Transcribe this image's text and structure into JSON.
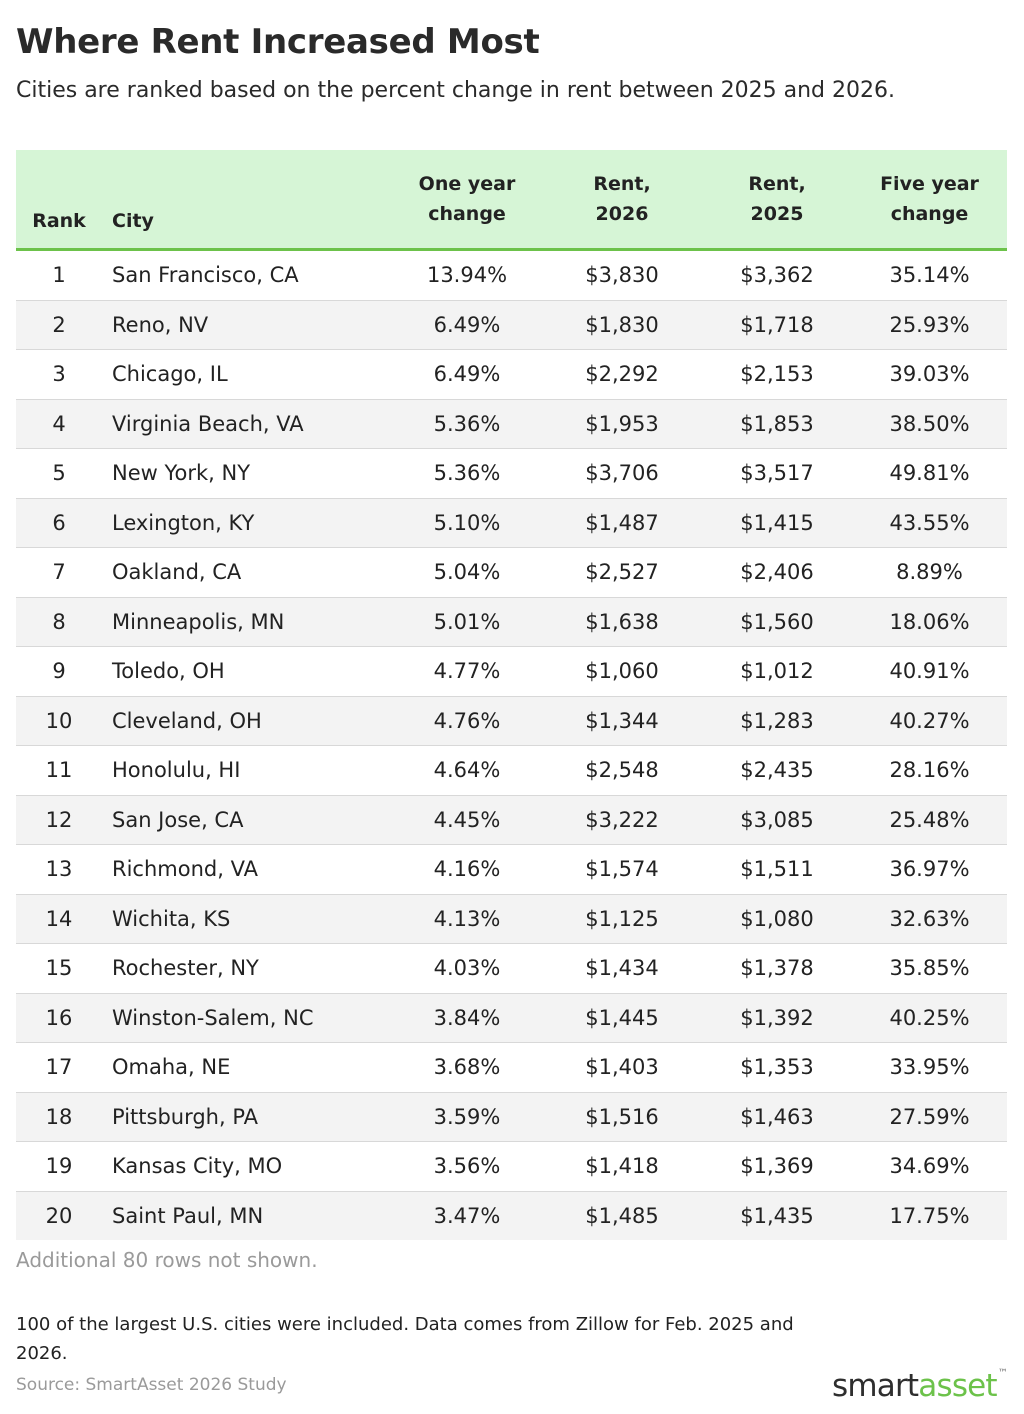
{
  "title": "Where Rent Increased Most",
  "subtitle": "Cities are ranked based on the percent change in rent between 2025 and 2026.",
  "chart_data": {
    "type": "table",
    "columns": [
      {
        "key": "rank",
        "label": "Rank"
      },
      {
        "key": "city",
        "label": "City"
      },
      {
        "key": "one_year",
        "label": "One year change"
      },
      {
        "key": "rent_2026",
        "label": "Rent, 2026"
      },
      {
        "key": "rent_2025",
        "label": "Rent, 2025"
      },
      {
        "key": "five_year",
        "label": "Five year change"
      }
    ],
    "rows": [
      {
        "rank": "1",
        "city": "San Francisco, CA",
        "one_year": "13.94%",
        "rent_2026": "$3,830",
        "rent_2025": "$3,362",
        "five_year": "35.14%"
      },
      {
        "rank": "2",
        "city": "Reno, NV",
        "one_year": "6.49%",
        "rent_2026": "$1,830",
        "rent_2025": "$1,718",
        "five_year": "25.93%"
      },
      {
        "rank": "3",
        "city": "Chicago, IL",
        "one_year": "6.49%",
        "rent_2026": "$2,292",
        "rent_2025": "$2,153",
        "five_year": "39.03%"
      },
      {
        "rank": "4",
        "city": "Virginia Beach, VA",
        "one_year": "5.36%",
        "rent_2026": "$1,953",
        "rent_2025": "$1,853",
        "five_year": "38.50%"
      },
      {
        "rank": "5",
        "city": "New York, NY",
        "one_year": "5.36%",
        "rent_2026": "$3,706",
        "rent_2025": "$3,517",
        "five_year": "49.81%"
      },
      {
        "rank": "6",
        "city": "Lexington, KY",
        "one_year": "5.10%",
        "rent_2026": "$1,487",
        "rent_2025": "$1,415",
        "five_year": "43.55%"
      },
      {
        "rank": "7",
        "city": "Oakland, CA",
        "one_year": "5.04%",
        "rent_2026": "$2,527",
        "rent_2025": "$2,406",
        "five_year": "8.89%"
      },
      {
        "rank": "8",
        "city": "Minneapolis, MN",
        "one_year": "5.01%",
        "rent_2026": "$1,638",
        "rent_2025": "$1,560",
        "five_year": "18.06%"
      },
      {
        "rank": "9",
        "city": "Toledo, OH",
        "one_year": "4.77%",
        "rent_2026": "$1,060",
        "rent_2025": "$1,012",
        "five_year": "40.91%"
      },
      {
        "rank": "10",
        "city": "Cleveland, OH",
        "one_year": "4.76%",
        "rent_2026": "$1,344",
        "rent_2025": "$1,283",
        "five_year": "40.27%"
      },
      {
        "rank": "11",
        "city": "Honolulu, HI",
        "one_year": "4.64%",
        "rent_2026": "$2,548",
        "rent_2025": "$2,435",
        "five_year": "28.16%"
      },
      {
        "rank": "12",
        "city": "San Jose, CA",
        "one_year": "4.45%",
        "rent_2026": "$3,222",
        "rent_2025": "$3,085",
        "five_year": "25.48%"
      },
      {
        "rank": "13",
        "city": "Richmond, VA",
        "one_year": "4.16%",
        "rent_2026": "$1,574",
        "rent_2025": "$1,511",
        "five_year": "36.97%"
      },
      {
        "rank": "14",
        "city": "Wichita, KS",
        "one_year": "4.13%",
        "rent_2026": "$1,125",
        "rent_2025": "$1,080",
        "five_year": "32.63%"
      },
      {
        "rank": "15",
        "city": "Rochester, NY",
        "one_year": "4.03%",
        "rent_2026": "$1,434",
        "rent_2025": "$1,378",
        "five_year": "35.85%"
      },
      {
        "rank": "16",
        "city": "Winston-Salem, NC",
        "one_year": "3.84%",
        "rent_2026": "$1,445",
        "rent_2025": "$1,392",
        "five_year": "40.25%"
      },
      {
        "rank": "17",
        "city": "Omaha, NE",
        "one_year": "3.68%",
        "rent_2026": "$1,403",
        "rent_2025": "$1,353",
        "five_year": "33.95%"
      },
      {
        "rank": "18",
        "city": "Pittsburgh, PA",
        "one_year": "3.59%",
        "rent_2026": "$1,516",
        "rent_2025": "$1,463",
        "five_year": "27.59%"
      },
      {
        "rank": "19",
        "city": "Kansas City, MO",
        "one_year": "3.56%",
        "rent_2026": "$1,418",
        "rent_2025": "$1,369",
        "five_year": "34.69%"
      },
      {
        "rank": "20",
        "city": "Saint Paul, MN",
        "one_year": "3.47%",
        "rent_2026": "$1,485",
        "rent_2025": "$1,435",
        "five_year": "17.75%"
      }
    ]
  },
  "more_rows_note": "Additional 80 rows not shown.",
  "footnote": "100 of the largest U.S. cities were included. Data comes from Zillow for Feb. 2025 and 2026.",
  "source": "Source: SmartAsset 2026 Study",
  "logo": {
    "part1": "smart",
    "part2": "asset",
    "tm": "™"
  },
  "colors": {
    "header_bg": "#d6f5d6",
    "header_rule": "#6cc24a",
    "stripe": "#f3f3f3",
    "brand_green": "#6cc24a"
  }
}
